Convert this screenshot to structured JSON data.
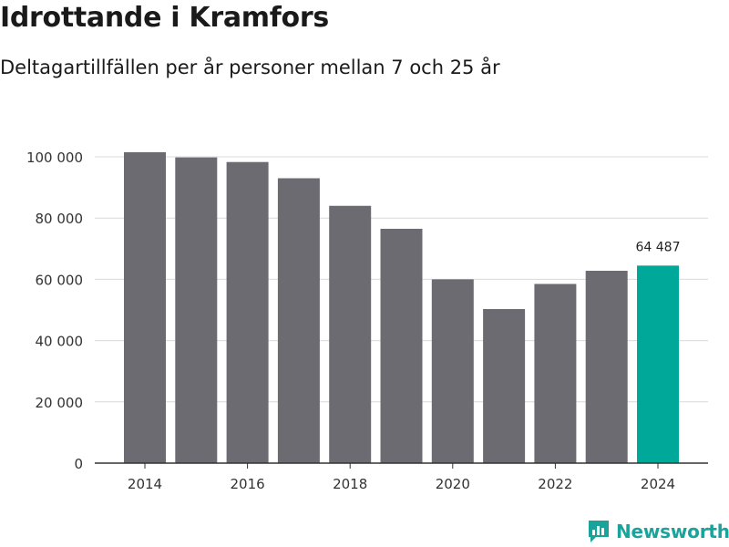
{
  "title": "Idrottande i Kramfors",
  "subtitle": "Deltagartillfällen per år personer mellan 7 och 25 år",
  "logo_text": "Newsworthy",
  "colors": {
    "bar": "#6d6b72",
    "highlight": "#00a89a",
    "grid": "#d9d9d9",
    "axis": "#333333"
  },
  "chart_data": {
    "type": "bar",
    "categories": [
      "2014",
      "2015",
      "2016",
      "2017",
      "2018",
      "2019",
      "2020",
      "2021",
      "2022",
      "2023",
      "2024"
    ],
    "values": [
      101500,
      99800,
      98300,
      93000,
      84000,
      76500,
      60000,
      50300,
      58500,
      62800,
      64487
    ],
    "highlight_index": 10,
    "highlight_label": "64 487",
    "x_tick_labels": [
      "2014",
      "2016",
      "2018",
      "2020",
      "2022",
      "2024"
    ],
    "y_ticks": [
      0,
      20000,
      40000,
      60000,
      80000,
      100000
    ],
    "y_tick_labels": [
      "0",
      "20 000",
      "40 000",
      "60 000",
      "80 000",
      "100 000"
    ],
    "ylim": [
      0,
      100000
    ],
    "grid": true
  }
}
